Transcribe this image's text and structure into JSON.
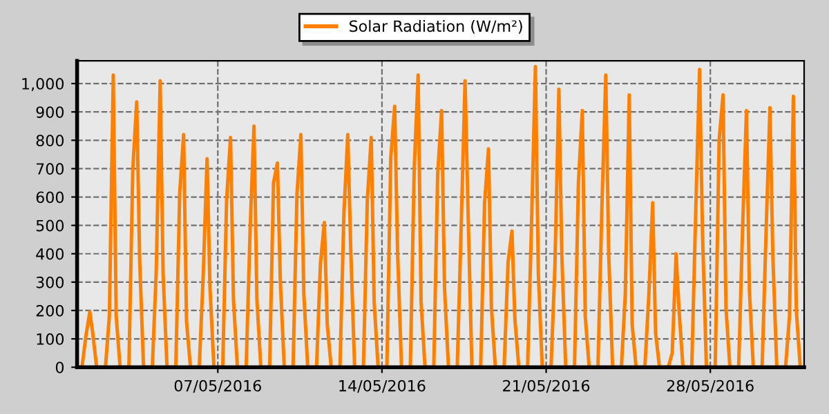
{
  "chart_data": {
    "type": "line",
    "x": [
      "2016-05-01T05:00",
      "2016-05-01T09:00",
      "2016-05-01T13:00",
      "2016-05-01T16:00",
      "2016-05-01T20:00",
      "2016-05-02T05:00",
      "2016-05-02T09:00",
      "2016-05-02T13:00",
      "2016-05-02T16:00",
      "2016-05-02T20:00",
      "2016-05-03T05:00",
      "2016-05-03T09:00",
      "2016-05-03T13:00",
      "2016-05-03T16:00",
      "2016-05-03T20:00",
      "2016-05-04T05:00",
      "2016-05-04T09:00",
      "2016-05-04T13:00",
      "2016-05-04T16:00",
      "2016-05-04T20:00",
      "2016-05-05T05:00",
      "2016-05-05T09:00",
      "2016-05-05T13:00",
      "2016-05-05T16:00",
      "2016-05-05T20:00",
      "2016-05-06T05:00",
      "2016-05-06T09:00",
      "2016-05-06T13:00",
      "2016-05-06T16:00",
      "2016-05-06T20:00",
      "2016-05-07T05:00",
      "2016-05-07T09:00",
      "2016-05-07T13:00",
      "2016-05-07T16:00",
      "2016-05-07T20:00",
      "2016-05-08T05:00",
      "2016-05-08T09:00",
      "2016-05-08T13:00",
      "2016-05-08T16:00",
      "2016-05-08T20:00",
      "2016-05-09T05:00",
      "2016-05-09T09:00",
      "2016-05-09T13:00",
      "2016-05-09T16:00",
      "2016-05-09T20:00",
      "2016-05-10T05:00",
      "2016-05-10T09:00",
      "2016-05-10T13:00",
      "2016-05-10T16:00",
      "2016-05-10T20:00",
      "2016-05-11T05:00",
      "2016-05-11T09:00",
      "2016-05-11T13:00",
      "2016-05-11T16:00",
      "2016-05-11T20:00",
      "2016-05-12T05:00",
      "2016-05-12T09:00",
      "2016-05-12T13:00",
      "2016-05-12T16:00",
      "2016-05-12T20:00",
      "2016-05-13T05:00",
      "2016-05-13T09:00",
      "2016-05-13T13:00",
      "2016-05-13T16:00",
      "2016-05-13T20:00",
      "2016-05-14T05:00",
      "2016-05-14T09:00",
      "2016-05-14T13:00",
      "2016-05-14T16:00",
      "2016-05-14T20:00",
      "2016-05-15T05:00",
      "2016-05-15T09:00",
      "2016-05-15T13:00",
      "2016-05-15T16:00",
      "2016-05-15T20:00",
      "2016-05-16T05:00",
      "2016-05-16T09:00",
      "2016-05-16T13:00",
      "2016-05-16T16:00",
      "2016-05-16T20:00",
      "2016-05-17T05:00",
      "2016-05-17T09:00",
      "2016-05-17T13:00",
      "2016-05-17T16:00",
      "2016-05-17T20:00",
      "2016-05-18T05:00",
      "2016-05-18T09:00",
      "2016-05-18T13:00",
      "2016-05-18T16:00",
      "2016-05-18T20:00",
      "2016-05-19T05:00",
      "2016-05-19T09:00",
      "2016-05-19T13:00",
      "2016-05-19T16:00",
      "2016-05-19T20:00",
      "2016-05-20T05:00",
      "2016-05-20T09:00",
      "2016-05-20T13:00",
      "2016-05-20T16:00",
      "2016-05-20T20:00",
      "2016-05-21T05:00",
      "2016-05-21T09:00",
      "2016-05-21T13:00",
      "2016-05-21T16:00",
      "2016-05-21T20:00",
      "2016-05-22T05:00",
      "2016-05-22T09:00",
      "2016-05-22T13:00",
      "2016-05-22T16:00",
      "2016-05-22T20:00",
      "2016-05-23T05:00",
      "2016-05-23T09:00",
      "2016-05-23T13:00",
      "2016-05-23T16:00",
      "2016-05-23T20:00",
      "2016-05-24T05:00",
      "2016-05-24T09:00",
      "2016-05-24T13:00",
      "2016-05-24T16:00",
      "2016-05-24T20:00",
      "2016-05-25T05:00",
      "2016-05-25T09:00",
      "2016-05-25T13:00",
      "2016-05-25T16:00",
      "2016-05-25T20:00",
      "2016-05-26T05:00",
      "2016-05-26T09:00",
      "2016-05-26T13:00",
      "2016-05-26T16:00",
      "2016-05-26T20:00",
      "2016-05-27T05:00",
      "2016-05-27T09:00",
      "2016-05-27T13:00",
      "2016-05-27T16:00",
      "2016-05-27T20:00",
      "2016-05-28T05:00",
      "2016-05-28T09:00",
      "2016-05-28T13:00",
      "2016-05-28T16:00",
      "2016-05-28T20:00",
      "2016-05-29T05:00",
      "2016-05-29T09:00",
      "2016-05-29T13:00",
      "2016-05-29T16:00",
      "2016-05-29T20:00",
      "2016-05-30T05:00",
      "2016-05-30T09:00",
      "2016-05-30T13:00",
      "2016-05-30T16:00",
      "2016-05-30T20:00",
      "2016-05-31T05:00",
      "2016-05-31T09:00",
      "2016-05-31T13:00",
      "2016-05-31T16:00",
      "2016-05-31T20:00"
    ],
    "series": [
      {
        "name": "Solar Radiation (W/m²)",
        "color": "#ff8000",
        "values": [
          0,
          110,
          195,
          120,
          0,
          0,
          180,
          1030,
          180,
          0,
          0,
          700,
          935,
          380,
          0,
          0,
          340,
          1010,
          330,
          0,
          0,
          615,
          820,
          160,
          0,
          0,
          320,
          735,
          280,
          0,
          0,
          590,
          810,
          240,
          0,
          0,
          480,
          850,
          240,
          0,
          0,
          650,
          720,
          300,
          0,
          0,
          610,
          820,
          260,
          0,
          0,
          365,
          510,
          150,
          0,
          0,
          540,
          820,
          420,
          0,
          0,
          590,
          810,
          230,
          0,
          0,
          740,
          920,
          400,
          0,
          0,
          700,
          1030,
          230,
          0,
          0,
          680,
          905,
          280,
          0,
          0,
          490,
          1010,
          560,
          0,
          0,
          580,
          770,
          210,
          0,
          0,
          370,
          480,
          170,
          0,
          0,
          500,
          1060,
          330,
          0,
          0,
          360,
          980,
          400,
          0,
          0,
          650,
          905,
          180,
          0,
          0,
          560,
          1030,
          400,
          0,
          0,
          260,
          960,
          150,
          0,
          0,
          250,
          580,
          120,
          0,
          0,
          50,
          400,
          200,
          0,
          0,
          540,
          1050,
          470,
          0,
          0,
          800,
          960,
          210,
          0,
          0,
          490,
          905,
          270,
          0,
          0,
          470,
          915,
          390,
          0,
          0,
          180,
          955,
          200,
          0
        ]
      }
    ],
    "xlim": [
      "2016-05-01T00:00",
      "2016-06-01T00:00"
    ],
    "xticks": [
      {
        "value": "2016-05-07",
        "label": "07/05/2016"
      },
      {
        "value": "2016-05-14",
        "label": "14/05/2016"
      },
      {
        "value": "2016-05-21",
        "label": "21/05/2016"
      },
      {
        "value": "2016-05-28",
        "label": "28/05/2016"
      }
    ],
    "ylim": [
      0,
      1080
    ],
    "yticks": [
      0,
      100,
      200,
      300,
      400,
      500,
      600,
      700,
      800,
      900,
      {
        "value": 1000,
        "label": "1,000"
      }
    ],
    "grid": true,
    "legend": "top",
    "marker": "none",
    "line_style": "solid"
  }
}
